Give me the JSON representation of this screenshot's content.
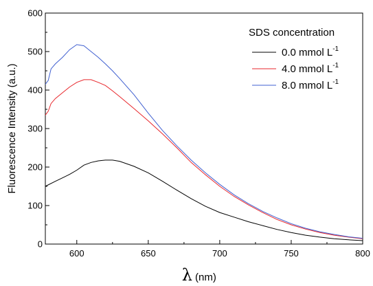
{
  "chart_data": {
    "type": "line",
    "title": "",
    "xlabel_symbol": "λ",
    "xlabel_unit": "(nm)",
    "ylabel": "Fluorescence Intensity (a.u.)",
    "xlim": [
      578,
      800
    ],
    "ylim": [
      0,
      600
    ],
    "xticks": [
      600,
      650,
      700,
      750,
      800
    ],
    "yticks": [
      0,
      100,
      200,
      300,
      400,
      500,
      600
    ],
    "grid": false,
    "legend": {
      "title": "SDS concentration",
      "placement": "top-right"
    },
    "series": [
      {
        "name": "0.0 mmol L",
        "name_sup": "-1",
        "color": "#000000",
        "x": [
          578,
          585,
          590,
          595,
          600,
          605,
          610,
          615,
          620,
          625,
          630,
          640,
          650,
          660,
          670,
          680,
          690,
          700,
          710,
          720,
          730,
          740,
          750,
          760,
          770,
          780,
          790,
          800
        ],
        "y": [
          150,
          163,
          172,
          181,
          192,
          205,
          212,
          216,
          218,
          218,
          215,
          202,
          185,
          163,
          140,
          118,
          98,
          82,
          70,
          58,
          48,
          38,
          30,
          23,
          18,
          14,
          11,
          9
        ]
      },
      {
        "name": "4.0 mmol L",
        "name_sup": "-1",
        "color": "#e8262b",
        "x": [
          578,
          580,
          582,
          585,
          590,
          595,
          600,
          605,
          610,
          615,
          620,
          625,
          630,
          640,
          650,
          660,
          670,
          680,
          690,
          700,
          710,
          720,
          730,
          740,
          750,
          760,
          770,
          780,
          790,
          800
        ],
        "y": [
          335,
          345,
          365,
          378,
          393,
          408,
          420,
          427,
          427,
          420,
          412,
          398,
          383,
          352,
          320,
          286,
          250,
          212,
          180,
          150,
          124,
          102,
          82,
          64,
          50,
          39,
          30,
          23,
          18,
          14
        ]
      },
      {
        "name": "8.0 mmol L",
        "name_sup": "-1",
        "color": "#3f5fd0",
        "x": [
          578,
          580,
          582,
          585,
          590,
          595,
          600,
          605,
          610,
          615,
          620,
          625,
          630,
          640,
          650,
          660,
          670,
          680,
          690,
          700,
          710,
          720,
          730,
          740,
          750,
          760,
          770,
          780,
          790,
          800
        ],
        "y": [
          415,
          425,
          455,
          468,
          485,
          505,
          518,
          515,
          500,
          485,
          468,
          450,
          430,
          388,
          340,
          295,
          255,
          218,
          185,
          155,
          128,
          105,
          85,
          68,
          53,
          41,
          32,
          25,
          19,
          15
        ]
      }
    ]
  }
}
